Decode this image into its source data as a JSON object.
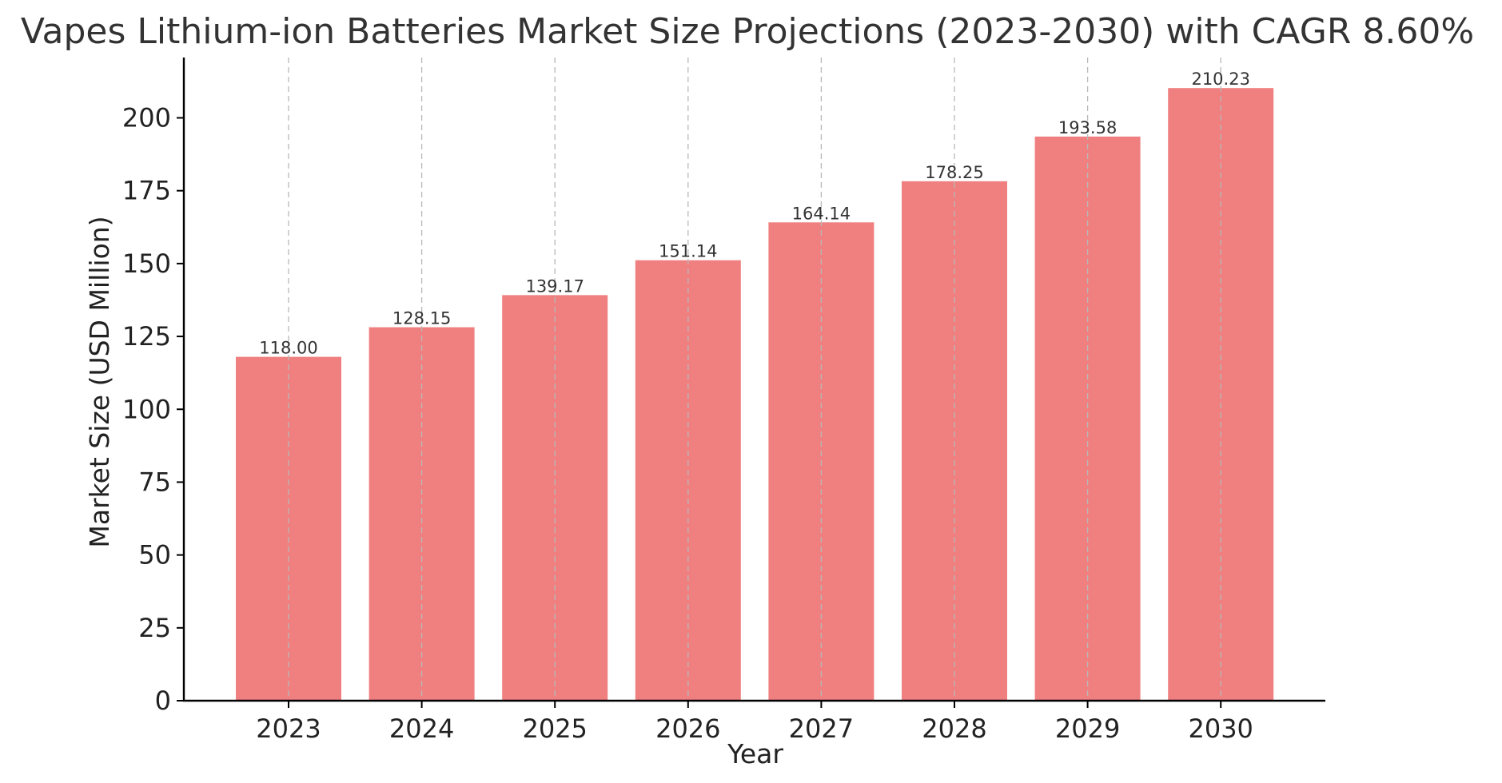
{
  "chart_data": {
    "type": "bar",
    "title": "Vapes Lithium-ion Batteries Market Size Projections (2023-2030) with CAGR 8.60%",
    "xlabel": "Year",
    "ylabel": "Market Size (USD Million)",
    "categories": [
      "2023",
      "2024",
      "2025",
      "2026",
      "2027",
      "2028",
      "2029",
      "2030"
    ],
    "values": [
      118.0,
      128.15,
      139.17,
      151.14,
      164.14,
      178.25,
      193.58,
      210.23
    ],
    "value_labels": [
      "118.00",
      "128.15",
      "139.17",
      "151.14",
      "164.14",
      "178.25",
      "193.58",
      "210.23"
    ],
    "ylim": [
      0,
      220.7
    ],
    "yticks": [
      0,
      25,
      50,
      75,
      100,
      125,
      150,
      175,
      200
    ],
    "grid": {
      "x": true,
      "y": false,
      "style": "dashed"
    },
    "bar_color": "#f08080",
    "grid_color": "#b8b8b8"
  }
}
